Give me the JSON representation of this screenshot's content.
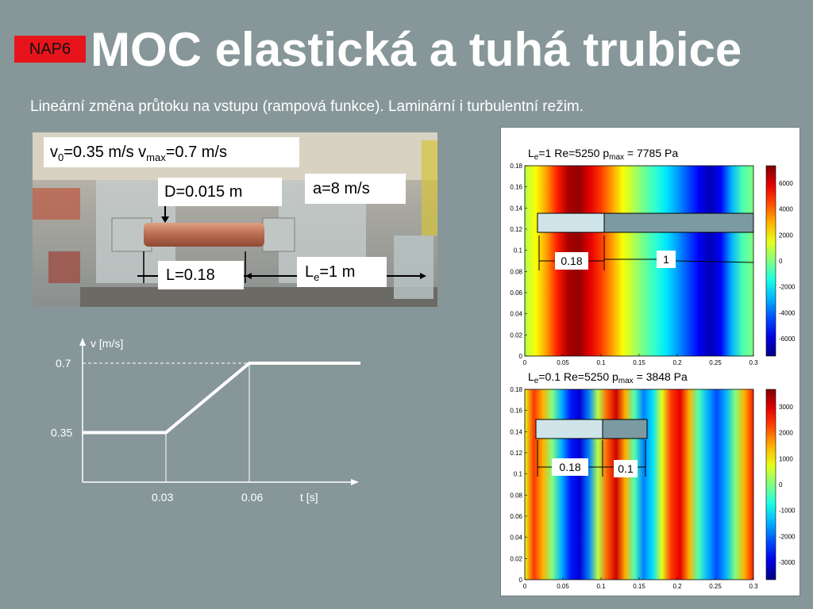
{
  "slide": {
    "badge": "NAP6",
    "title": "MOC elastická a tuhá trubice",
    "subtitle": "Lineární změna průtoku na vstupu (rampová funkce). Laminární i turbulentní režim."
  },
  "photo": {
    "v_label": {
      "prefix": "v",
      "sub0": "0",
      "mid": "=0.35 m/s v",
      "submax": "max",
      "suffix": "=0.7 m/s"
    },
    "d_label": "D=0.015 m",
    "a_label": "a=8 m/s",
    "l_label": "L=0.18",
    "le_label": {
      "prefix": "L",
      "sub": "e",
      "suffix": "=1 m"
    }
  },
  "chart_data": [
    {
      "type": "line",
      "title": "",
      "xlabel": "t [s]",
      "ylabel": "v [m/s]",
      "x": [
        0,
        0.03,
        0.06,
        0.1
      ],
      "series": [
        {
          "values": [
            0.35,
            0.35,
            0.7,
            0.7
          ]
        }
      ],
      "xticks": [
        "0.03",
        "0.06"
      ],
      "yticks": [
        "0.35",
        "0.7"
      ],
      "grid": false
    },
    {
      "type": "heatmap",
      "title": {
        "prefix": "L",
        "sub": "e",
        "mid": "=1  Re=5250 p",
        "sub2": "max",
        "suffix": " = 7785 Pa"
      },
      "xlim": [
        0,
        0.3
      ],
      "ylim": [
        0,
        0.18
      ],
      "xticks": [
        "0",
        "0.05",
        "0.1",
        "0.15",
        "0.2",
        "0.25",
        "0.3"
      ],
      "yticks": [
        "0",
        "0.02",
        "0.04",
        "0.06",
        "0.08",
        "0.1",
        "0.12",
        "0.14",
        "0.16",
        "0.18"
      ],
      "colorbar_ticks": [
        "6000",
        "4000",
        "2000",
        "0",
        "-2000",
        "-4000",
        "-6000"
      ],
      "annotations": [
        "0.18",
        "1"
      ]
    },
    {
      "type": "heatmap",
      "title": {
        "prefix": "L",
        "sub": "e",
        "mid": "=0.1  Re=5250 p",
        "sub2": "max",
        "suffix": " = 3848 Pa"
      },
      "xlim": [
        0,
        0.3
      ],
      "ylim": [
        0,
        0.18
      ],
      "xticks": [
        "0",
        "0.05",
        "0.1",
        "0.15",
        "0.2",
        "0.25",
        "0.3"
      ],
      "yticks": [
        "0",
        "0.02",
        "0.04",
        "0.06",
        "0.08",
        "0.1",
        "0.12",
        "0.14",
        "0.16",
        "0.18"
      ],
      "colorbar_ticks": [
        "3000",
        "2000",
        "1000",
        "0",
        "-1000",
        "-2000",
        "-3000"
      ],
      "annotations": [
        "0.18",
        "0.1"
      ]
    }
  ]
}
